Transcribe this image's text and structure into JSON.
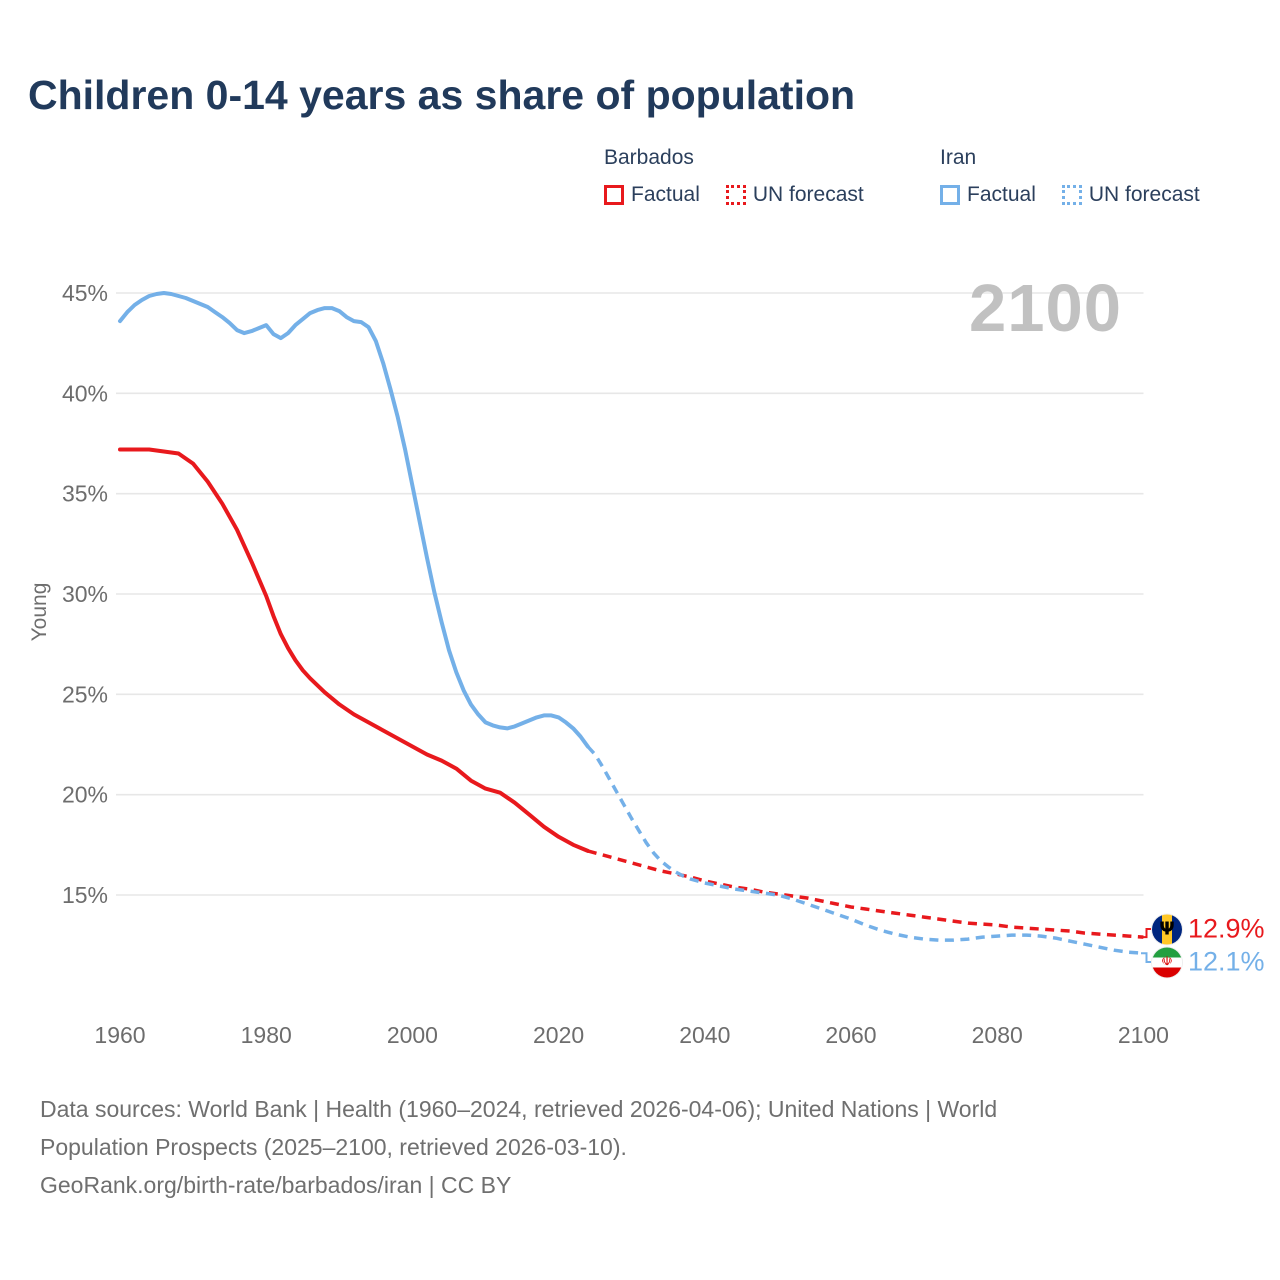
{
  "page": {
    "title": "Children 0-14 years as share of population",
    "watermark": "2100",
    "background": "#ffffff",
    "title_color": "#213a5b",
    "watermark_color": "#c1c1c1"
  },
  "legend": {
    "groups": [
      {
        "name": "Barbados",
        "color": "#e8191d",
        "items": [
          {
            "label": "Factual",
            "style": "solid"
          },
          {
            "label": "UN forecast",
            "style": "dotted"
          }
        ]
      },
      {
        "name": "Iran",
        "color": "#74b0e8",
        "items": [
          {
            "label": "Factual",
            "style": "solid"
          },
          {
            "label": "UN forecast",
            "style": "dotted"
          }
        ]
      }
    ]
  },
  "chart_data": {
    "type": "line",
    "title": "Children 0-14 years as share of population",
    "ylabel": "Young",
    "grid": true,
    "x_axis": {
      "range": [
        1960,
        2100
      ],
      "ticks": [
        1960,
        1980,
        2000,
        2020,
        2040,
        2060,
        2080,
        2100
      ]
    },
    "y_axis": {
      "unit": "%",
      "range": [
        12,
        46
      ],
      "ticks": [
        {
          "label": "45%",
          "value": 45
        },
        {
          "label": "40%",
          "value": 40
        },
        {
          "label": "35%",
          "value": 35
        },
        {
          "label": "30%",
          "value": 30
        },
        {
          "label": "25%",
          "value": 25
        },
        {
          "label": "20%",
          "value": 20
        },
        {
          "label": "15%",
          "value": 15
        }
      ]
    },
    "forecast_split_year": 2024,
    "series": [
      {
        "id": "barbados-factual",
        "name": "Barbados Factual",
        "color": "#e8191d",
        "style": "solid",
        "points": [
          [
            1960,
            37.2
          ],
          [
            1962,
            37.2
          ],
          [
            1964,
            37.2
          ],
          [
            1966,
            37.1
          ],
          [
            1968,
            37.0
          ],
          [
            1970,
            36.5
          ],
          [
            1972,
            35.6
          ],
          [
            1974,
            34.5
          ],
          [
            1976,
            33.2
          ],
          [
            1978,
            31.6
          ],
          [
            1980,
            29.9
          ],
          [
            1981,
            28.9
          ],
          [
            1982,
            28.0
          ],
          [
            1983,
            27.3
          ],
          [
            1984,
            26.7
          ],
          [
            1985,
            26.2
          ],
          [
            1986,
            25.8
          ],
          [
            1988,
            25.1
          ],
          [
            1990,
            24.5
          ],
          [
            1992,
            24.0
          ],
          [
            1994,
            23.6
          ],
          [
            1996,
            23.2
          ],
          [
            1998,
            22.8
          ],
          [
            2000,
            22.4
          ],
          [
            2002,
            22.0
          ],
          [
            2004,
            21.7
          ],
          [
            2006,
            21.3
          ],
          [
            2008,
            20.7
          ],
          [
            2010,
            20.3
          ],
          [
            2012,
            20.1
          ],
          [
            2014,
            19.6
          ],
          [
            2016,
            19.0
          ],
          [
            2018,
            18.4
          ],
          [
            2020,
            17.9
          ],
          [
            2022,
            17.5
          ],
          [
            2024,
            17.2
          ]
        ]
      },
      {
        "id": "barbados-forecast",
        "name": "Barbados UN forecast",
        "color": "#e8191d",
        "style": "dashed",
        "points": [
          [
            2024,
            17.2
          ],
          [
            2026,
            17.0
          ],
          [
            2028,
            16.8
          ],
          [
            2030,
            16.6
          ],
          [
            2032,
            16.4
          ],
          [
            2034,
            16.2
          ],
          [
            2036,
            16.05
          ],
          [
            2038,
            15.9
          ],
          [
            2040,
            15.7
          ],
          [
            2042,
            15.55
          ],
          [
            2044,
            15.4
          ],
          [
            2046,
            15.3
          ],
          [
            2048,
            15.15
          ],
          [
            2050,
            15.05
          ],
          [
            2052,
            14.95
          ],
          [
            2054,
            14.85
          ],
          [
            2056,
            14.7
          ],
          [
            2058,
            14.55
          ],
          [
            2060,
            14.4
          ],
          [
            2062,
            14.3
          ],
          [
            2064,
            14.2
          ],
          [
            2066,
            14.1
          ],
          [
            2068,
            14.0
          ],
          [
            2070,
            13.9
          ],
          [
            2072,
            13.8
          ],
          [
            2074,
            13.7
          ],
          [
            2076,
            13.6
          ],
          [
            2078,
            13.55
          ],
          [
            2080,
            13.5
          ],
          [
            2082,
            13.4
          ],
          [
            2084,
            13.35
          ],
          [
            2086,
            13.3
          ],
          [
            2088,
            13.25
          ],
          [
            2090,
            13.2
          ],
          [
            2092,
            13.1
          ],
          [
            2094,
            13.05
          ],
          [
            2096,
            13.0
          ],
          [
            2098,
            12.95
          ],
          [
            2100,
            12.9
          ]
        ]
      },
      {
        "id": "iran-factual",
        "name": "Iran Factual",
        "color": "#74b0e8",
        "style": "solid",
        "points": [
          [
            1960,
            43.6
          ],
          [
            1961,
            44.05
          ],
          [
            1962,
            44.4
          ],
          [
            1963,
            44.65
          ],
          [
            1964,
            44.85
          ],
          [
            1965,
            44.95
          ],
          [
            1966,
            45.0
          ],
          [
            1967,
            44.95
          ],
          [
            1968,
            44.85
          ],
          [
            1969,
            44.75
          ],
          [
            1970,
            44.6
          ],
          [
            1971,
            44.45
          ],
          [
            1972,
            44.3
          ],
          [
            1973,
            44.05
          ],
          [
            1974,
            43.8
          ],
          [
            1975,
            43.5
          ],
          [
            1976,
            43.15
          ],
          [
            1977,
            43.0
          ],
          [
            1978,
            43.1
          ],
          [
            1979,
            43.25
          ],
          [
            1980,
            43.4
          ],
          [
            1981,
            42.95
          ],
          [
            1982,
            42.75
          ],
          [
            1983,
            43.0
          ],
          [
            1984,
            43.4
          ],
          [
            1985,
            43.7
          ],
          [
            1986,
            44.0
          ],
          [
            1987,
            44.15
          ],
          [
            1988,
            44.25
          ],
          [
            1989,
            44.25
          ],
          [
            1990,
            44.1
          ],
          [
            1991,
            43.8
          ],
          [
            1992,
            43.6
          ],
          [
            1993,
            43.55
          ],
          [
            1994,
            43.3
          ],
          [
            1995,
            42.6
          ],
          [
            1996,
            41.5
          ],
          [
            1997,
            40.2
          ],
          [
            1998,
            38.8
          ],
          [
            1999,
            37.2
          ],
          [
            2000,
            35.4
          ],
          [
            2001,
            33.6
          ],
          [
            2002,
            31.8
          ],
          [
            2003,
            30.1
          ],
          [
            2004,
            28.6
          ],
          [
            2005,
            27.2
          ],
          [
            2006,
            26.1
          ],
          [
            2007,
            25.2
          ],
          [
            2008,
            24.5
          ],
          [
            2009,
            24.0
          ],
          [
            2010,
            23.6
          ],
          [
            2011,
            23.45
          ],
          [
            2012,
            23.35
          ],
          [
            2013,
            23.3
          ],
          [
            2014,
            23.4
          ],
          [
            2015,
            23.55
          ],
          [
            2016,
            23.7
          ],
          [
            2017,
            23.85
          ],
          [
            2018,
            23.95
          ],
          [
            2019,
            23.95
          ],
          [
            2020,
            23.85
          ],
          [
            2021,
            23.6
          ],
          [
            2022,
            23.3
          ],
          [
            2023,
            22.9
          ],
          [
            2024,
            22.4
          ]
        ]
      },
      {
        "id": "iran-forecast",
        "name": "Iran UN forecast",
        "color": "#74b0e8",
        "style": "dashed",
        "points": [
          [
            2024,
            22.4
          ],
          [
            2025,
            22.0
          ],
          [
            2026,
            21.4
          ],
          [
            2027,
            20.75
          ],
          [
            2028,
            20.1
          ],
          [
            2029,
            19.45
          ],
          [
            2030,
            18.8
          ],
          [
            2031,
            18.2
          ],
          [
            2032,
            17.6
          ],
          [
            2033,
            17.1
          ],
          [
            2034,
            16.7
          ],
          [
            2035,
            16.4
          ],
          [
            2036,
            16.15
          ],
          [
            2037,
            15.95
          ],
          [
            2038,
            15.8
          ],
          [
            2039,
            15.7
          ],
          [
            2040,
            15.6
          ],
          [
            2042,
            15.45
          ],
          [
            2044,
            15.3
          ],
          [
            2046,
            15.2
          ],
          [
            2048,
            15.1
          ],
          [
            2050,
            15.0
          ],
          [
            2052,
            14.8
          ],
          [
            2054,
            14.55
          ],
          [
            2056,
            14.3
          ],
          [
            2058,
            14.05
          ],
          [
            2060,
            13.8
          ],
          [
            2062,
            13.5
          ],
          [
            2064,
            13.25
          ],
          [
            2066,
            13.05
          ],
          [
            2068,
            12.9
          ],
          [
            2070,
            12.8
          ],
          [
            2072,
            12.75
          ],
          [
            2074,
            12.75
          ],
          [
            2076,
            12.8
          ],
          [
            2078,
            12.9
          ],
          [
            2080,
            12.95
          ],
          [
            2082,
            13.0
          ],
          [
            2084,
            13.0
          ],
          [
            2086,
            12.95
          ],
          [
            2088,
            12.85
          ],
          [
            2090,
            12.7
          ],
          [
            2092,
            12.55
          ],
          [
            2094,
            12.4
          ],
          [
            2096,
            12.25
          ],
          [
            2098,
            12.15
          ],
          [
            2100,
            12.1
          ]
        ]
      }
    ]
  },
  "end_labels": [
    {
      "country": "Barbados",
      "value": "12.9%",
      "value_num": 12.9,
      "color": "#e8191d",
      "flag_glyph": "Ψ",
      "flag_colors": [
        "#00267f",
        "#ffc726",
        "#00267f"
      ]
    },
    {
      "country": "Iran",
      "value": "12.1%",
      "value_num": 12.1,
      "color": "#74b0e8",
      "flag_glyph": "☫",
      "flag_colors": [
        "#239f40",
        "#ffffff",
        "#da0000"
      ]
    }
  ],
  "footer": {
    "lines": [
      "Data sources: World Bank | Health (1960–2024, retrieved 2026-04-06); United Nations | World",
      "Population Prospects (2025–2100, retrieved 2026-03-10).",
      "GeoRank.org/birth-rate/barbados/iran | CC BY"
    ]
  }
}
